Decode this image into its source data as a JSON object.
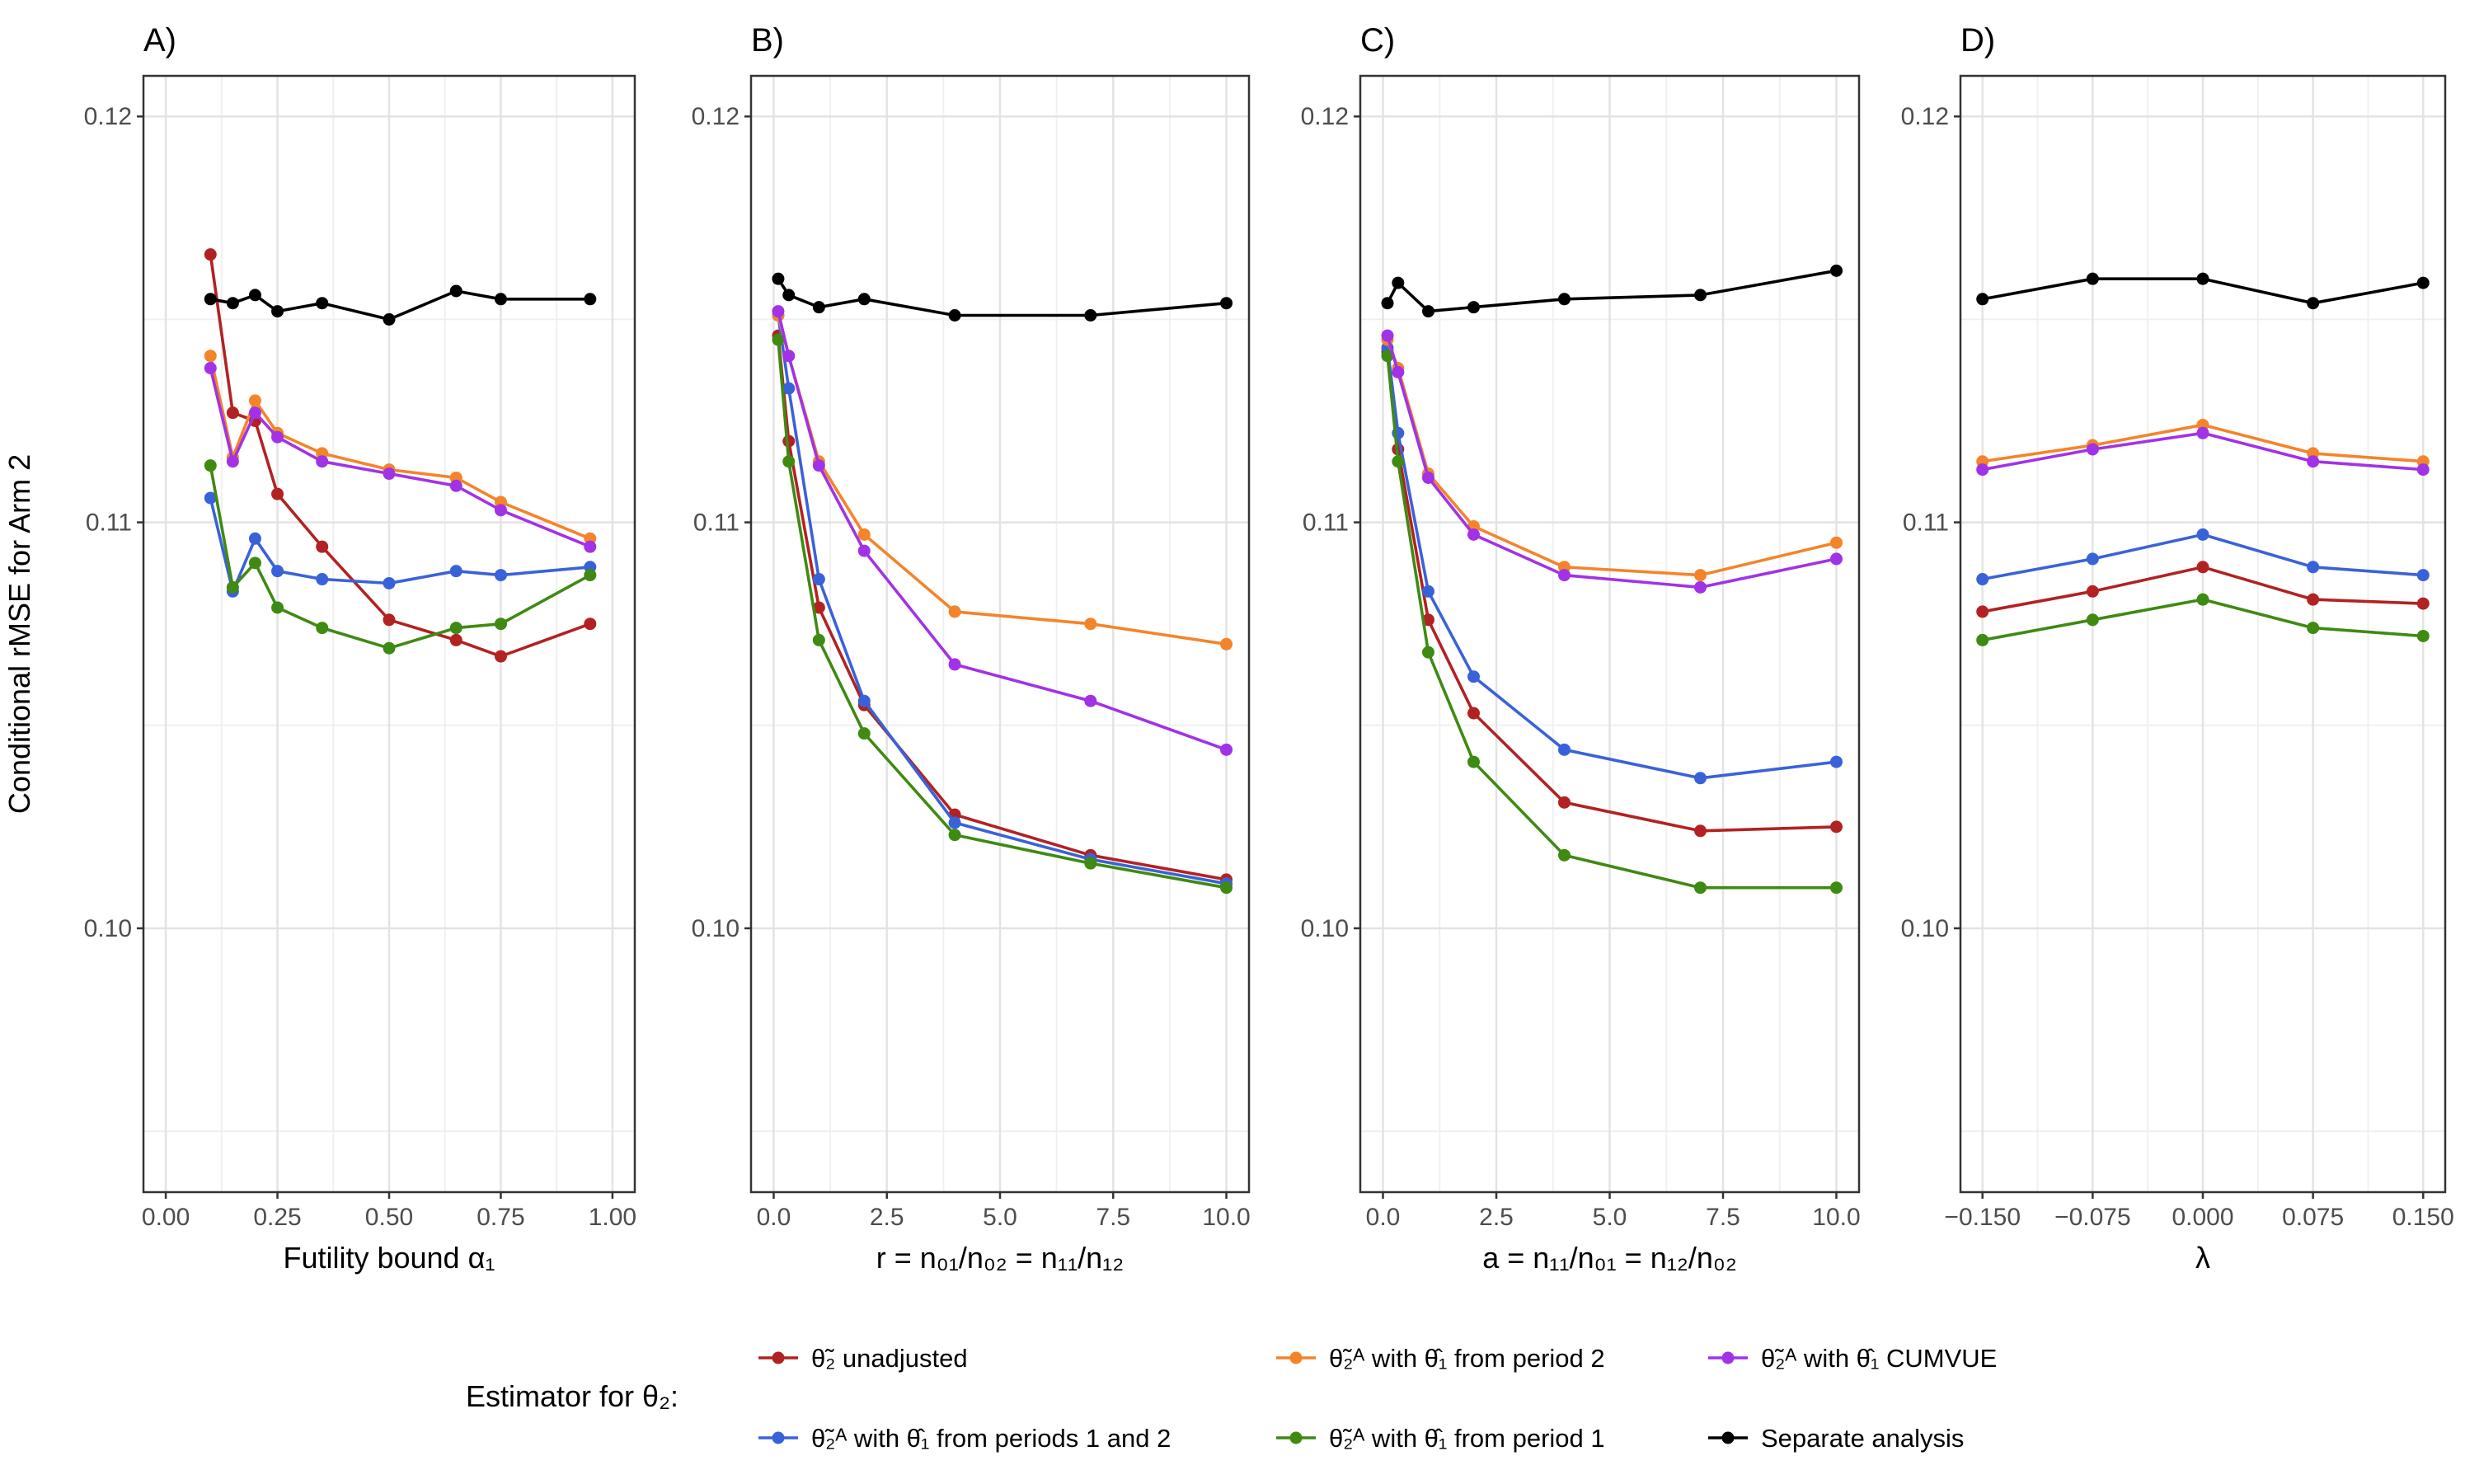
{
  "chart_data": {
    "y_axis": {
      "label": "Conditional rMSE for Arm 2",
      "ylim": [
        0.0935,
        0.121
      ],
      "ticks": [
        0.1,
        0.11,
        0.12
      ],
      "tick_labels": [
        "0.10",
        "0.11",
        "0.12"
      ],
      "minor_ticks": [
        0.095,
        0.105,
        0.115
      ]
    },
    "legend": {
      "title": "Estimator for θ₂:",
      "position": "bottom",
      "entries": [
        {
          "name": "θ̃₂ unadjusted",
          "color": "#b22222"
        },
        {
          "name": "θ̃₂ᴬ with θ̂₁ from periods 1 and 2",
          "color": "#3a62d8"
        },
        {
          "name": "θ̃₂ᴬ with θ̂₁ from period 2",
          "color": "#f4842a"
        },
        {
          "name": "θ̃₂ᴬ with θ̂₁ from period 1",
          "color": "#3f8a12"
        },
        {
          "name": "θ̃₂ᴬ with θ̂₁ CUMVUE",
          "color": "#a232e6"
        },
        {
          "name": "Separate analysis",
          "color": "#000000"
        }
      ]
    },
    "panels": [
      {
        "label": "A)",
        "type": "line",
        "xlabel": "Futility bound α₁",
        "xlim": [
          -0.05,
          1.05
        ],
        "xticks": [
          0.0,
          0.25,
          0.5,
          0.75,
          1.0
        ],
        "xtick_labels": [
          "0.00",
          "0.25",
          "0.50",
          "0.75",
          "1.00"
        ],
        "x": [
          0.1,
          0.15,
          0.2,
          0.25,
          0.35,
          0.5,
          0.65,
          0.75,
          0.95
        ],
        "series": [
          {
            "name": "θ̃₂ unadjusted",
            "values": [
              0.1166,
              0.1127,
              0.1125,
              0.1107,
              0.1094,
              0.1076,
              0.1071,
              0.1067,
              0.1075
            ]
          },
          {
            "name": "θ̃₂ᴬ with θ̂₁ from periods 1 and 2",
            "values": [
              0.1106,
              0.1083,
              0.1096,
              0.1088,
              0.1086,
              0.1085,
              0.1088,
              0.1087,
              0.1089
            ]
          },
          {
            "name": "θ̃₂ᴬ with θ̂₁ from period 2",
            "values": [
              0.1141,
              0.1116,
              0.113,
              0.1122,
              0.1117,
              0.1113,
              0.1111,
              0.1105,
              0.1096
            ]
          },
          {
            "name": "θ̃₂ᴬ with θ̂₁ from period 1",
            "values": [
              0.1114,
              0.1084,
              0.109,
              0.1079,
              0.1074,
              0.1069,
              0.1074,
              0.1075,
              0.1087
            ]
          },
          {
            "name": "θ̃₂ᴬ with θ̂₁ CUMVUE",
            "values": [
              0.1138,
              0.1115,
              0.1127,
              0.1121,
              0.1115,
              0.1112,
              0.1109,
              0.1103,
              0.1094
            ]
          },
          {
            "name": "Separate analysis",
            "values": [
              0.1155,
              0.1154,
              0.1156,
              0.1152,
              0.1154,
              0.115,
              0.1157,
              0.1155,
              0.1155
            ]
          }
        ]
      },
      {
        "label": "B)",
        "type": "line",
        "xlabel": "r = n₀₁/n₀₂ = n₁₁/n₁₂",
        "xlim": [
          -0.5,
          10.5
        ],
        "xticks": [
          0.0,
          2.5,
          5.0,
          7.5,
          10.0
        ],
        "xtick_labels": [
          "0.0",
          "2.5",
          "5.0",
          "7.5",
          "10.0"
        ],
        "x": [
          0.1,
          0.333,
          1.0,
          2.0,
          4.0,
          7.0,
          10.0
        ],
        "series": [
          {
            "name": "θ̃₂ unadjusted",
            "values": [
              0.1146,
              0.112,
              0.1079,
              0.1055,
              0.1028,
              0.1018,
              0.1012
            ]
          },
          {
            "name": "θ̃₂ᴬ with θ̂₁ from periods 1 and 2",
            "values": [
              0.1151,
              0.1133,
              0.1086,
              0.1056,
              0.1026,
              0.1017,
              0.1011
            ]
          },
          {
            "name": "θ̃₂ᴬ with θ̂₁ from period 2",
            "values": [
              0.1151,
              0.1141,
              0.1115,
              0.1097,
              0.1078,
              0.1075,
              0.107
            ]
          },
          {
            "name": "θ̃₂ᴬ with θ̂₁ from period 1",
            "values": [
              0.1145,
              0.1115,
              0.1071,
              0.1048,
              0.1023,
              0.1016,
              0.101
            ]
          },
          {
            "name": "θ̃₂ᴬ with θ̂₁ CUMVUE",
            "values": [
              0.1152,
              0.1141,
              0.1114,
              0.1093,
              0.1065,
              0.1056,
              0.1044
            ]
          },
          {
            "name": "Separate analysis",
            "values": [
              0.116,
              0.1156,
              0.1153,
              0.1155,
              0.1151,
              0.1151,
              0.1154
            ]
          }
        ]
      },
      {
        "label": "C)",
        "type": "line",
        "xlabel": "a = n₁₁/n₀₁ = n₁₂/n₀₂",
        "xlim": [
          -0.5,
          10.5
        ],
        "xticks": [
          0.0,
          2.5,
          5.0,
          7.5,
          10.0
        ],
        "xtick_labels": [
          "0.0",
          "2.5",
          "5.0",
          "7.5",
          "10.0"
        ],
        "x": [
          0.1,
          0.333,
          1.0,
          2.0,
          4.0,
          7.0,
          10.0
        ],
        "series": [
          {
            "name": "θ̃₂ unadjusted",
            "values": [
              0.1142,
              0.1118,
              0.1076,
              0.1053,
              0.1031,
              0.1024,
              0.1025
            ]
          },
          {
            "name": "θ̃₂ᴬ with θ̂₁ from periods 1 and 2",
            "values": [
              0.1143,
              0.1122,
              0.1083,
              0.1062,
              0.1044,
              0.1037,
              0.1041
            ]
          },
          {
            "name": "θ̃₂ᴬ with θ̂₁ from period 2",
            "values": [
              0.1145,
              0.1138,
              0.1112,
              0.1099,
              0.1089,
              0.1087,
              0.1095
            ]
          },
          {
            "name": "θ̃₂ᴬ with θ̂₁ from period 1",
            "values": [
              0.1141,
              0.1115,
              0.1068,
              0.1041,
              0.1018,
              0.101,
              0.101
            ]
          },
          {
            "name": "θ̃₂ᴬ with θ̂₁ CUMVUE",
            "values": [
              0.1146,
              0.1137,
              0.1111,
              0.1097,
              0.1087,
              0.1084,
              0.1091
            ]
          },
          {
            "name": "Separate analysis",
            "values": [
              0.1154,
              0.1159,
              0.1152,
              0.1153,
              0.1155,
              0.1156,
              0.1162
            ]
          }
        ]
      },
      {
        "label": "D)",
        "type": "line",
        "xlabel": "λ",
        "xlim": [
          -0.165,
          0.165
        ],
        "xticks": [
          -0.15,
          -0.075,
          0.0,
          0.075,
          0.15
        ],
        "xtick_labels": [
          "−0.150",
          "−0.075",
          "0.000",
          "0.075",
          "0.150"
        ],
        "x": [
          -0.15,
          -0.075,
          0.0,
          0.075,
          0.15
        ],
        "series": [
          {
            "name": "θ̃₂ unadjusted",
            "values": [
              0.1078,
              0.1083,
              0.1089,
              0.1081,
              0.108
            ]
          },
          {
            "name": "θ̃₂ᴬ with θ̂₁ from periods 1 and 2",
            "values": [
              0.1086,
              0.1091,
              0.1097,
              0.1089,
              0.1087
            ]
          },
          {
            "name": "θ̃₂ᴬ with θ̂₁ from period 2",
            "values": [
              0.1115,
              0.1119,
              0.1124,
              0.1117,
              0.1115
            ]
          },
          {
            "name": "θ̃₂ᴬ with θ̂₁ from period 1",
            "values": [
              0.1071,
              0.1076,
              0.1081,
              0.1074,
              0.1072
            ]
          },
          {
            "name": "θ̃₂ᴬ with θ̂₁ CUMVUE",
            "values": [
              0.1113,
              0.1118,
              0.1122,
              0.1115,
              0.1113
            ]
          },
          {
            "name": "Separate analysis",
            "values": [
              0.1155,
              0.116,
              0.116,
              0.1154,
              0.1159
            ]
          }
        ]
      }
    ]
  }
}
